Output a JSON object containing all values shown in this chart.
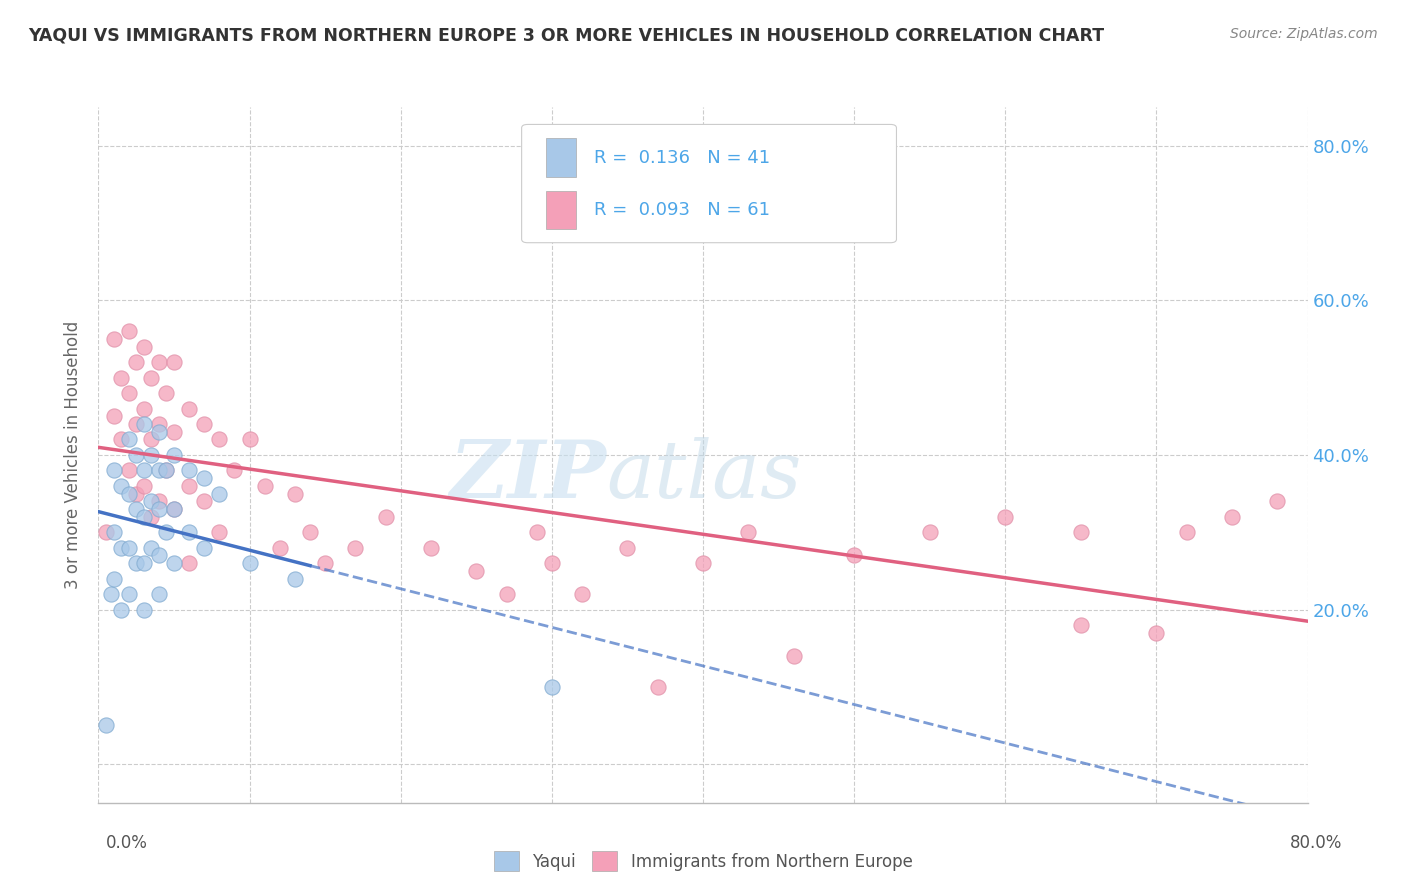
{
  "title": "YAQUI VS IMMIGRANTS FROM NORTHERN EUROPE 3 OR MORE VEHICLES IN HOUSEHOLD CORRELATION CHART",
  "source": "Source: ZipAtlas.com",
  "legend_label1": "Yaqui",
  "legend_label2": "Immigrants from Northern Europe",
  "r1": 0.136,
  "n1": 41,
  "r2": 0.093,
  "n2": 61,
  "color1": "#a8c8e8",
  "color2": "#f4a0b8",
  "line_color1": "#4472c4",
  "line_color2": "#e06080",
  "watermark_zip": "ZIP",
  "watermark_atlas": "atlas",
  "xlim": [
    0.0,
    0.8
  ],
  "ylim": [
    -0.05,
    0.85
  ],
  "yaqui_x": [
    0.005,
    0.008,
    0.01,
    0.01,
    0.01,
    0.015,
    0.015,
    0.015,
    0.02,
    0.02,
    0.02,
    0.02,
    0.025,
    0.025,
    0.025,
    0.03,
    0.03,
    0.03,
    0.03,
    0.03,
    0.035,
    0.035,
    0.035,
    0.04,
    0.04,
    0.04,
    0.04,
    0.04,
    0.045,
    0.045,
    0.05,
    0.05,
    0.05,
    0.06,
    0.06,
    0.07,
    0.07,
    0.08,
    0.1,
    0.13,
    0.3
  ],
  "yaqui_y": [
    0.05,
    0.22,
    0.38,
    0.3,
    0.24,
    0.36,
    0.28,
    0.2,
    0.42,
    0.35,
    0.28,
    0.22,
    0.4,
    0.33,
    0.26,
    0.44,
    0.38,
    0.32,
    0.26,
    0.2,
    0.4,
    0.34,
    0.28,
    0.43,
    0.38,
    0.33,
    0.27,
    0.22,
    0.38,
    0.3,
    0.4,
    0.33,
    0.26,
    0.38,
    0.3,
    0.37,
    0.28,
    0.35,
    0.26,
    0.24,
    0.1
  ],
  "northern_europe_x": [
    0.005,
    0.01,
    0.01,
    0.015,
    0.015,
    0.02,
    0.02,
    0.02,
    0.025,
    0.025,
    0.025,
    0.03,
    0.03,
    0.03,
    0.035,
    0.035,
    0.035,
    0.04,
    0.04,
    0.04,
    0.045,
    0.045,
    0.05,
    0.05,
    0.05,
    0.06,
    0.06,
    0.06,
    0.07,
    0.07,
    0.08,
    0.08,
    0.09,
    0.1,
    0.11,
    0.12,
    0.13,
    0.14,
    0.15,
    0.17,
    0.19,
    0.22,
    0.25,
    0.27,
    0.29,
    0.3,
    0.32,
    0.35,
    0.37,
    0.4,
    0.43,
    0.46,
    0.5,
    0.55,
    0.6,
    0.65,
    0.7,
    0.72,
    0.75,
    0.78,
    0.65
  ],
  "northern_europe_y": [
    0.3,
    0.55,
    0.45,
    0.5,
    0.42,
    0.56,
    0.48,
    0.38,
    0.52,
    0.44,
    0.35,
    0.54,
    0.46,
    0.36,
    0.5,
    0.42,
    0.32,
    0.52,
    0.44,
    0.34,
    0.48,
    0.38,
    0.52,
    0.43,
    0.33,
    0.46,
    0.36,
    0.26,
    0.44,
    0.34,
    0.42,
    0.3,
    0.38,
    0.42,
    0.36,
    0.28,
    0.35,
    0.3,
    0.26,
    0.28,
    0.32,
    0.28,
    0.25,
    0.22,
    0.3,
    0.26,
    0.22,
    0.28,
    0.1,
    0.26,
    0.3,
    0.14,
    0.27,
    0.3,
    0.32,
    0.3,
    0.17,
    0.3,
    0.32,
    0.34,
    0.18
  ]
}
